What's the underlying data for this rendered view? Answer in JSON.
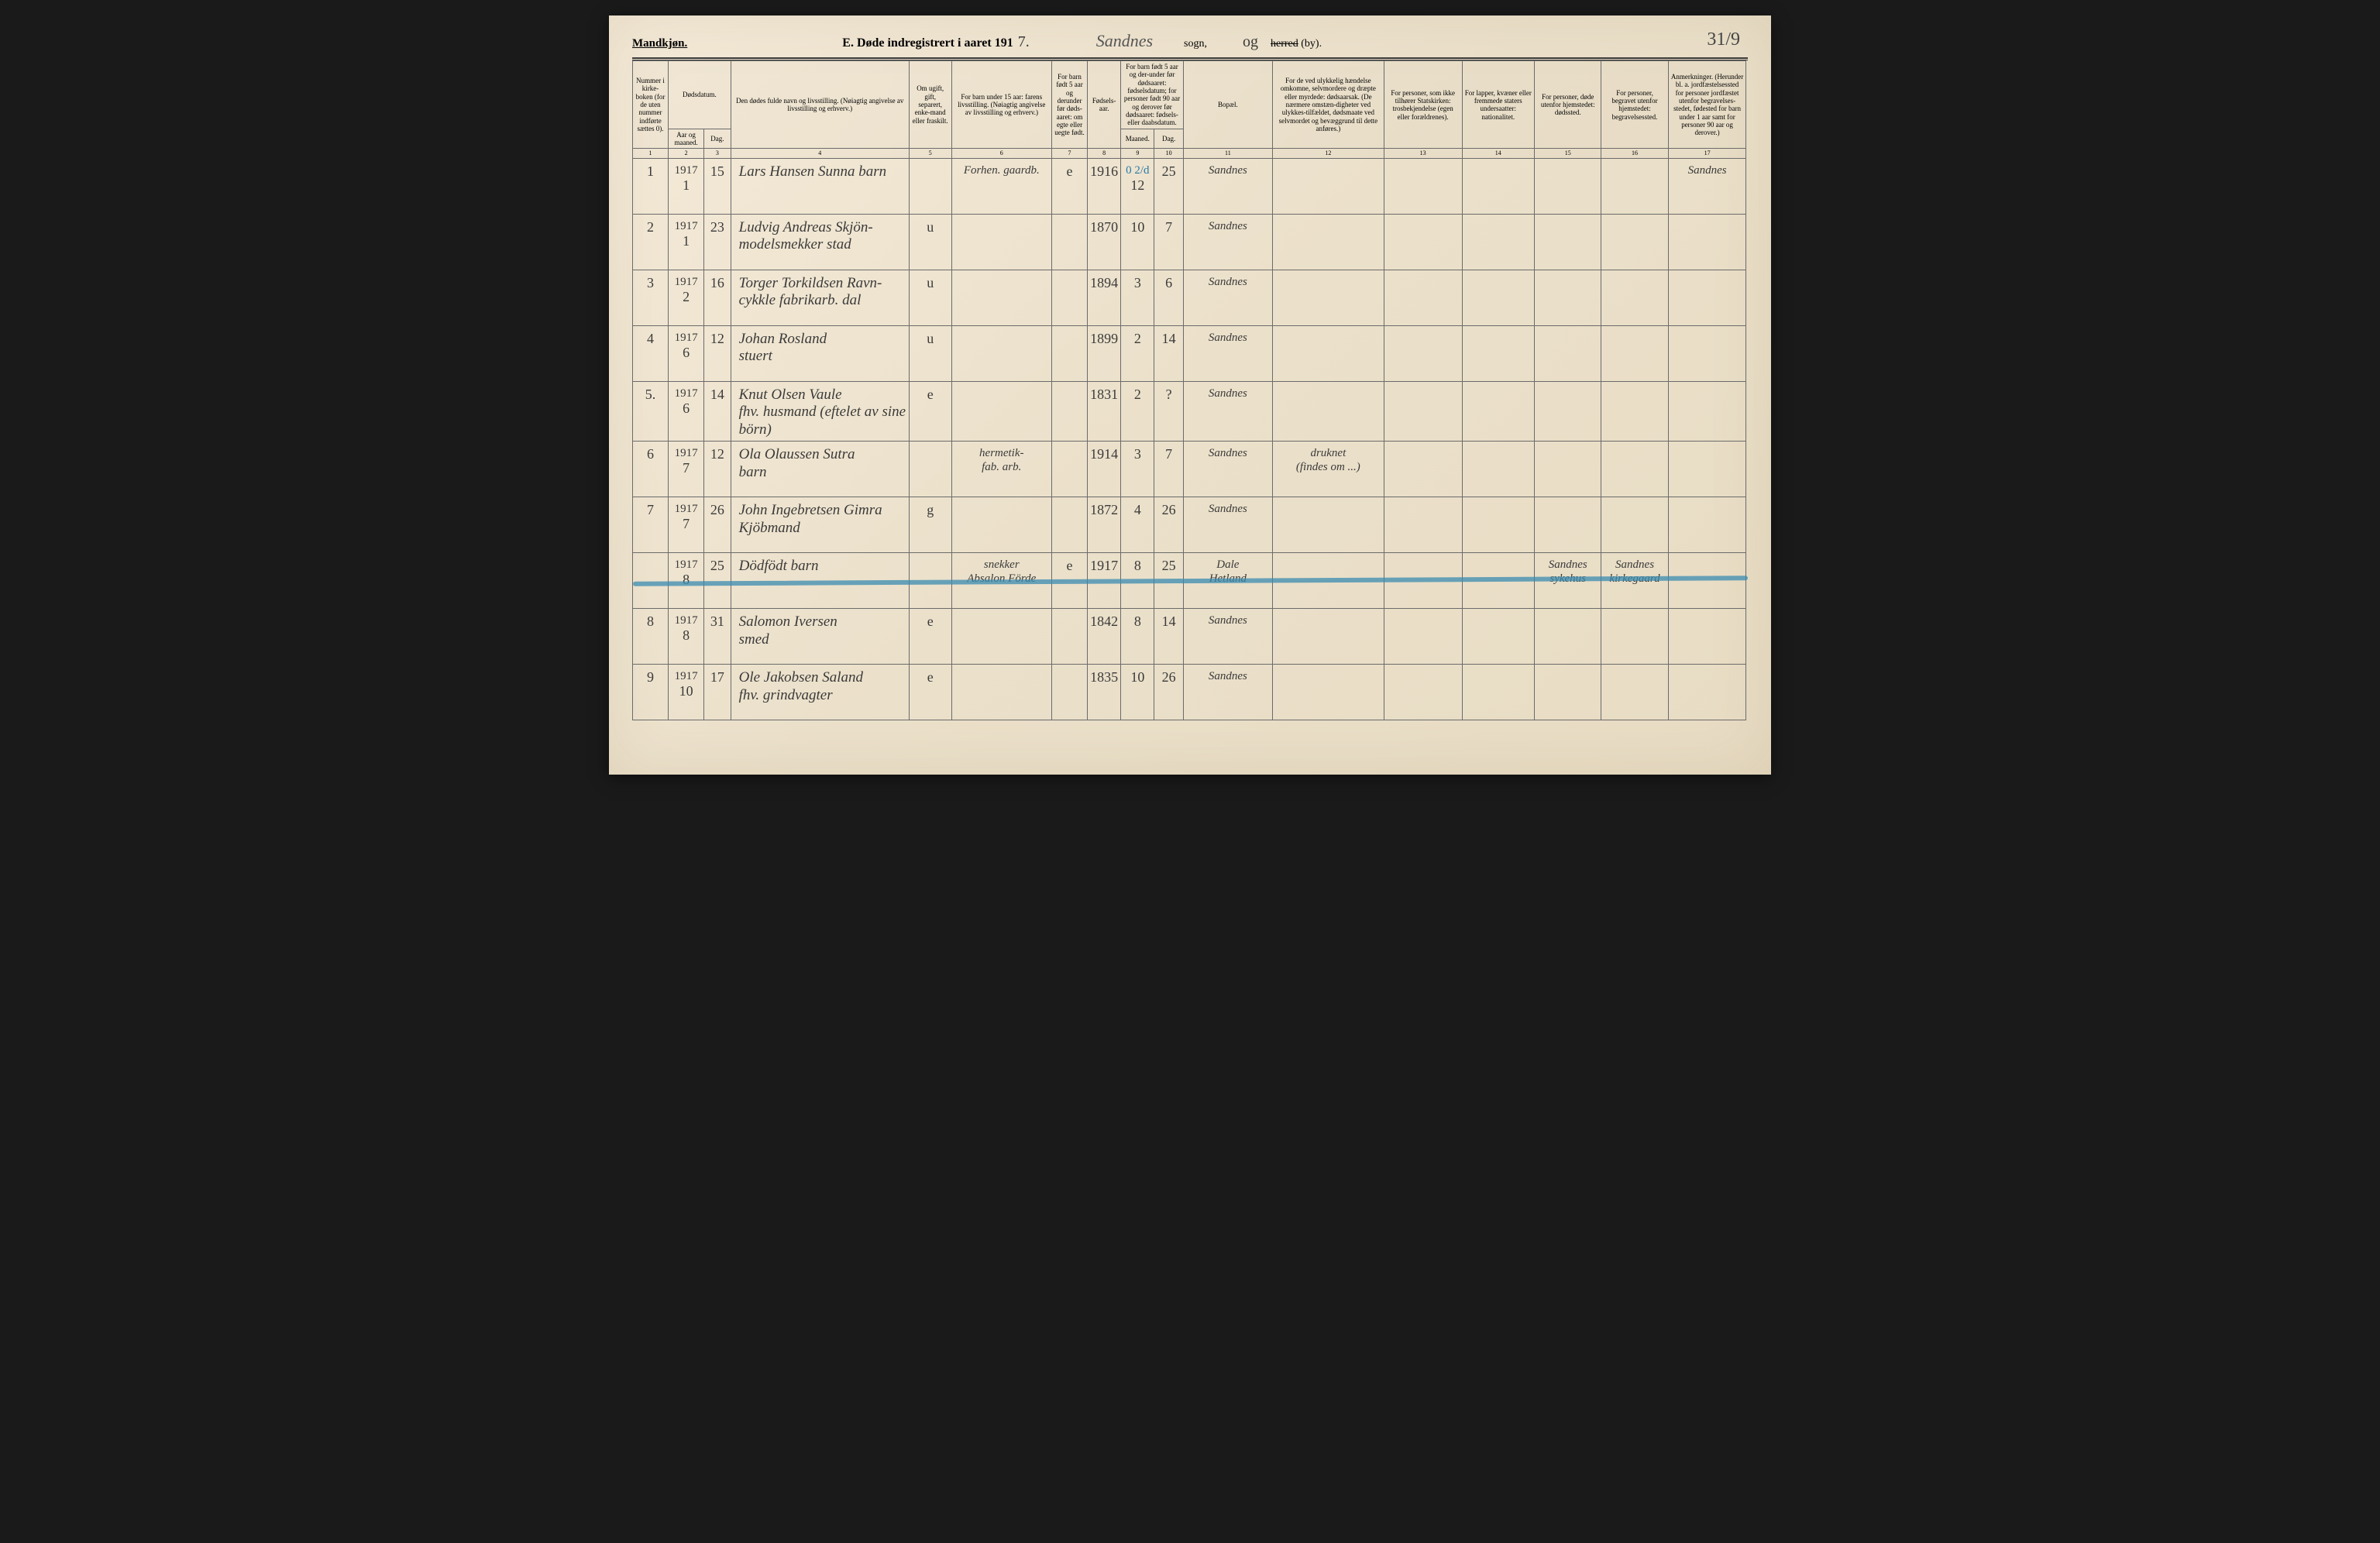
{
  "page": {
    "gender_label": "Mandkjøn.",
    "title_prefix": "E.  Døde indregistrert i aaret 191",
    "year_suffix": "7.",
    "sogn_handwritten": "Sandnes",
    "sogn_label": "sogn,",
    "herred_pre": "og",
    "herred_strike": "herred",
    "herred_suffix": "(by).",
    "page_number": "31/9"
  },
  "columns": {
    "1": "Nummer i kirke-boken (for de uten nummer indførte sættes 0).",
    "2_3_group": "Dødsdatum.",
    "2": "Aar og maaned.",
    "3": "Dag.",
    "4": "Den dødes fulde navn og livsstilling. (Nøiagtig angivelse av livsstilling og erhverv.)",
    "5": "Om ugift, gift, separert, enke-mand eller fraskilt.",
    "6": "For barn under 15 aar: farens livsstilling. (Nøiagtig angivelse av livsstilling og erhverv.)",
    "7": "For barn født 5 aar og derunder før døds-aaret: om egte eller uegte født.",
    "8": "Fødsels-aar.",
    "9_10_group": "For barn født 5 aar og der-under før dødsaaret: fødselsdatum; for personer født 90 aar og derover før dødsaaret: fødsels- eller daabsdatum.",
    "9": "Maaned.",
    "10": "Dag.",
    "11": "Bopæl.",
    "12": "For de ved ulykkelig hændelse omkomne, selvmordere og dræpte eller myrdede: dødsaarsak. (De nærmere omstæn-digheter ved ulykkes-tilfældet, dødsmaate ved selvmordet og bevæggrund til dette anføres.)",
    "13": "For personer, som ikke tilhører Statskirken: trosbekjendelse (egen eller forældrenes).",
    "14": "For lapper, kvæner eller fremmede staters undersaatter: nationalitet.",
    "15": "For personer, døde utenfor hjemstedet: dødssted.",
    "16": "For personer, begravet utenfor hjemstedet: begravelsessted.",
    "17": "Anmerkninger. (Herunder bl. a. jordfæstelsessted for personer jordfæstet utenfor begravelses-stedet, fødested for barn under 1 aar samt for personer 90 aar og derover.)"
  },
  "colnums": [
    "1",
    "2",
    "3",
    "4",
    "5",
    "6",
    "7",
    "8",
    "9",
    "10",
    "11",
    "12",
    "13",
    "14",
    "15",
    "16",
    "17"
  ],
  "rows": [
    {
      "num": "1",
      "year": "1917",
      "month": "1",
      "day": "15",
      "name": "Lars Hansen Sunna  barn",
      "marital": "",
      "father": "Forhen. gaardb.",
      "legit": "e",
      "birth_year": "1916",
      "birth_month_blue": "0 2/d",
      "birth_month": "12",
      "birth_day": "25",
      "residence": "Sandnes",
      "cause": "",
      "c13": "",
      "c14": "",
      "c15": "",
      "c16": "",
      "remarks": "Sandnes"
    },
    {
      "num": "2",
      "year": "1917",
      "month": "1",
      "day": "23",
      "name": "Ludvig Andreas Skjön-\nmodelsmekker   stad",
      "marital": "u",
      "father": "",
      "legit": "",
      "birth_year": "1870",
      "birth_month": "10",
      "birth_day": "7",
      "residence": "Sandnes",
      "cause": "",
      "c13": "",
      "c14": "",
      "c15": "",
      "c16": "",
      "remarks": ""
    },
    {
      "num": "3",
      "year": "1917",
      "month": "2",
      "day": "16",
      "name": "Torger Torkildsen Ravn-\ncykkle fabrikarb.  dal",
      "marital": "u",
      "father": "",
      "legit": "",
      "birth_year": "1894",
      "birth_month": "3",
      "birth_day": "6",
      "residence": "Sandnes",
      "cause": "",
      "c13": "",
      "c14": "",
      "c15": "",
      "c16": "",
      "remarks": ""
    },
    {
      "num": "4",
      "year": "1917",
      "month": "6",
      "day": "12",
      "name": "Johan Rosland\nstuert",
      "marital": "u",
      "father": "",
      "legit": "",
      "birth_year": "1899",
      "birth_month": "2",
      "birth_day": "14",
      "residence": "Sandnes",
      "cause": "",
      "c13": "",
      "c14": "",
      "c15": "",
      "c16": "",
      "remarks": ""
    },
    {
      "num": "5.",
      "year": "1917",
      "month": "6",
      "day": "14",
      "name": "Knut Olsen Vaule\nfhv. husmand (eftelet av sine börn)",
      "marital": "e",
      "father": "",
      "legit": "",
      "birth_year": "1831",
      "birth_month": "2",
      "birth_day": "?",
      "residence": "Sandnes",
      "cause": "",
      "c13": "",
      "c14": "",
      "c15": "",
      "c16": "",
      "remarks": ""
    },
    {
      "num": "6",
      "year": "1917",
      "month": "7",
      "day": "12",
      "name": "Ola Olaussen Sutra\nbarn",
      "marital": "",
      "father": "hermetik-\nfab. arb.",
      "legit": "",
      "birth_year": "1914",
      "birth_month": "3",
      "birth_day": "7",
      "residence": "Sandnes",
      "cause": "druknet\n(findes om ...)",
      "c13": "",
      "c14": "",
      "c15": "",
      "c16": "",
      "remarks": ""
    },
    {
      "num": "7",
      "year": "1917",
      "month": "7",
      "day": "26",
      "name": "John Ingebretsen Gimra\nKjöbmand",
      "marital": "g",
      "father": "",
      "legit": "",
      "birth_year": "1872",
      "birth_month": "4",
      "birth_day": "26",
      "residence": "Sandnes",
      "cause": "",
      "c13": "",
      "c14": "",
      "c15": "",
      "c16": "",
      "remarks": ""
    },
    {
      "crossout": true,
      "num": "",
      "year": "1917",
      "month": "8",
      "day": "25",
      "name": "Dödfödt barn",
      "marital": "",
      "father": "snekker\nAbsalon Förde",
      "legit": "e",
      "birth_year": "1917",
      "birth_month": "8",
      "birth_day": "25",
      "residence": "Dale\nHetland",
      "cause": "",
      "c13": "",
      "c14": "",
      "c15": "Sandnes\nsykehus",
      "c16": "Sandnes\nkirkegaard",
      "remarks": ""
    },
    {
      "num": "8",
      "year": "1917",
      "month": "8",
      "day": "31",
      "name": "Salomon Iversen\nsmed",
      "marital": "e",
      "father": "",
      "legit": "",
      "birth_year": "1842",
      "birth_month": "8",
      "birth_day": "14",
      "residence": "Sandnes",
      "cause": "",
      "c13": "",
      "c14": "",
      "c15": "",
      "c16": "",
      "remarks": ""
    },
    {
      "num": "9",
      "year": "1917",
      "month": "10",
      "day": "17",
      "name": "Ole Jakobsen Saland\nfhv. grindvagter",
      "marital": "e",
      "father": "",
      "legit": "",
      "birth_year": "1835",
      "birth_month": "10",
      "birth_day": "26",
      "residence": "Sandnes",
      "cause": "",
      "c13": "",
      "c14": "",
      "c15": "",
      "c16": "",
      "remarks": ""
    }
  ]
}
